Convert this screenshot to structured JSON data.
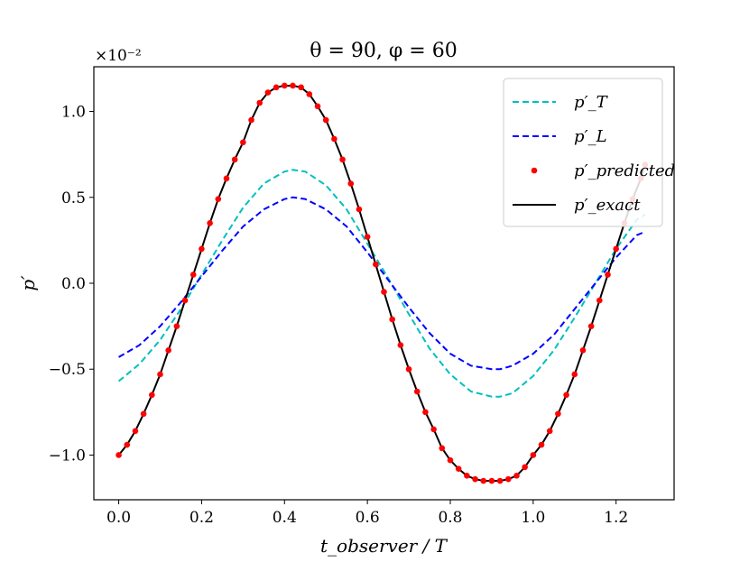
{
  "chart_data": {
    "type": "line",
    "title": "θ = 90, φ = 60",
    "xlabel": "t_observer / T",
    "ylabel": "p′",
    "y_multiplier": "×10⁻²",
    "xlim": [
      -0.06,
      1.34
    ],
    "ylim": [
      -1.26,
      1.26
    ],
    "xticks": [
      "0.0",
      "0.2",
      "0.4",
      "0.6",
      "0.8",
      "1.0",
      "1.2"
    ],
    "xtick_values": [
      0.0,
      0.2,
      0.4,
      0.6,
      0.8,
      1.0,
      1.2
    ],
    "yticks": [
      "−1.0",
      "−0.5",
      "0.0",
      "0.5",
      "1.0"
    ],
    "ytick_values": [
      -1.0,
      -0.5,
      0.0,
      0.5,
      1.0
    ],
    "grid": false,
    "legend_position": "top-right",
    "series": [
      {
        "name": "p′_T",
        "color": "#00bfbf",
        "style": "dashed",
        "x": [
          0.0,
          0.05,
          0.1,
          0.15,
          0.2,
          0.25,
          0.3,
          0.35,
          0.4,
          0.42,
          0.45,
          0.5,
          0.55,
          0.6,
          0.65,
          0.7,
          0.75,
          0.8,
          0.85,
          0.9,
          0.92,
          0.95,
          1.0,
          1.05,
          1.1,
          1.15,
          1.2,
          1.25,
          1.27
        ],
        "y": [
          -0.57,
          -0.47,
          -0.33,
          -0.15,
          0.05,
          0.25,
          0.44,
          0.58,
          0.65,
          0.66,
          0.65,
          0.57,
          0.43,
          0.23,
          0.03,
          -0.18,
          -0.38,
          -0.53,
          -0.63,
          -0.66,
          -0.66,
          -0.64,
          -0.54,
          -0.39,
          -0.2,
          0.0,
          0.2,
          0.37,
          0.4
        ]
      },
      {
        "name": "p′_L",
        "color": "#0000ff",
        "style": "dashed",
        "x": [
          0.0,
          0.05,
          0.1,
          0.15,
          0.2,
          0.25,
          0.3,
          0.35,
          0.4,
          0.42,
          0.45,
          0.5,
          0.55,
          0.6,
          0.65,
          0.7,
          0.75,
          0.8,
          0.85,
          0.9,
          0.92,
          0.95,
          1.0,
          1.05,
          1.1,
          1.15,
          1.2,
          1.25,
          1.27
        ],
        "y": [
          -0.43,
          -0.36,
          -0.25,
          -0.11,
          0.04,
          0.19,
          0.33,
          0.43,
          0.49,
          0.5,
          0.49,
          0.43,
          0.33,
          0.18,
          0.02,
          -0.14,
          -0.29,
          -0.41,
          -0.48,
          -0.5,
          -0.5,
          -0.48,
          -0.41,
          -0.3,
          -0.15,
          0.0,
          0.15,
          0.28,
          0.3
        ]
      },
      {
        "name": "p′_predicted",
        "color": "#ff0000",
        "style": "markers",
        "x": [
          0.0,
          0.02,
          0.04,
          0.06,
          0.08,
          0.1,
          0.12,
          0.14,
          0.16,
          0.18,
          0.2,
          0.22,
          0.24,
          0.26,
          0.28,
          0.3,
          0.32,
          0.34,
          0.36,
          0.38,
          0.4,
          0.42,
          0.44,
          0.46,
          0.48,
          0.5,
          0.52,
          0.54,
          0.56,
          0.58,
          0.6,
          0.62,
          0.64,
          0.66,
          0.68,
          0.7,
          0.72,
          0.74,
          0.76,
          0.78,
          0.8,
          0.82,
          0.84,
          0.86,
          0.88,
          0.9,
          0.92,
          0.94,
          0.96,
          0.98,
          1.0,
          1.02,
          1.04,
          1.06,
          1.08,
          1.1,
          1.12,
          1.14,
          1.16,
          1.18,
          1.2,
          1.22,
          1.24,
          1.26,
          1.27
        ],
        "y": [
          -1.0,
          -0.94,
          -0.86,
          -0.76,
          -0.65,
          -0.53,
          -0.39,
          -0.25,
          -0.1,
          0.05,
          0.2,
          0.35,
          0.49,
          0.61,
          0.72,
          0.82,
          0.95,
          1.05,
          1.11,
          1.14,
          1.15,
          1.15,
          1.14,
          1.1,
          1.03,
          0.95,
          0.84,
          0.72,
          0.58,
          0.43,
          0.27,
          0.11,
          -0.05,
          -0.21,
          -0.36,
          -0.5,
          -0.63,
          -0.75,
          -0.85,
          -0.96,
          -1.03,
          -1.08,
          -1.12,
          -1.14,
          -1.15,
          -1.15,
          -1.15,
          -1.14,
          -1.12,
          -1.07,
          -1.0,
          -0.94,
          -0.86,
          -0.76,
          -0.65,
          -0.53,
          -0.39,
          -0.25,
          -0.1,
          0.05,
          0.2,
          0.35,
          0.49,
          0.61,
          0.69
        ]
      },
      {
        "name": "p′_exact",
        "color": "#000000",
        "style": "solid",
        "x": [
          0.0,
          0.02,
          0.04,
          0.06,
          0.08,
          0.1,
          0.12,
          0.14,
          0.16,
          0.18,
          0.2,
          0.22,
          0.24,
          0.26,
          0.28,
          0.3,
          0.32,
          0.34,
          0.36,
          0.38,
          0.4,
          0.42,
          0.44,
          0.46,
          0.48,
          0.5,
          0.52,
          0.54,
          0.56,
          0.58,
          0.6,
          0.62,
          0.64,
          0.66,
          0.68,
          0.7,
          0.72,
          0.74,
          0.76,
          0.78,
          0.8,
          0.82,
          0.84,
          0.86,
          0.88,
          0.9,
          0.92,
          0.94,
          0.96,
          0.98,
          1.0,
          1.02,
          1.04,
          1.06,
          1.08,
          1.1,
          1.12,
          1.14,
          1.16,
          1.18,
          1.2,
          1.22,
          1.24,
          1.26,
          1.27
        ],
        "y": [
          -1.0,
          -0.94,
          -0.86,
          -0.76,
          -0.65,
          -0.53,
          -0.39,
          -0.25,
          -0.1,
          0.05,
          0.2,
          0.35,
          0.49,
          0.61,
          0.72,
          0.82,
          0.95,
          1.05,
          1.11,
          1.14,
          1.15,
          1.15,
          1.14,
          1.1,
          1.03,
          0.95,
          0.84,
          0.72,
          0.58,
          0.43,
          0.27,
          0.11,
          -0.05,
          -0.21,
          -0.36,
          -0.5,
          -0.63,
          -0.75,
          -0.85,
          -0.96,
          -1.03,
          -1.08,
          -1.12,
          -1.14,
          -1.15,
          -1.15,
          -1.15,
          -1.14,
          -1.12,
          -1.07,
          -1.0,
          -0.94,
          -0.86,
          -0.76,
          -0.65,
          -0.53,
          -0.39,
          -0.25,
          -0.1,
          0.05,
          0.2,
          0.35,
          0.49,
          0.61,
          0.69
        ]
      }
    ]
  }
}
